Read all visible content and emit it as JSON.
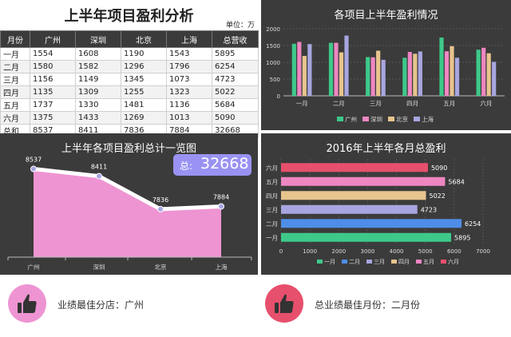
{
  "table_panel": {
    "title": "上半年项目盈利分析",
    "unit": "单位：万",
    "headers": [
      "月份",
      "广州",
      "深圳",
      "北京",
      "上海",
      "总营收"
    ],
    "rows": [
      [
        "一月",
        "1554",
        "1608",
        "1190",
        "1543",
        "5895"
      ],
      [
        "二月",
        "1580",
        "1582",
        "1296",
        "1796",
        "6254"
      ],
      [
        "三月",
        "1156",
        "1149",
        "1345",
        "1073",
        "4723"
      ],
      [
        "四月",
        "1135",
        "1309",
        "1255",
        "1323",
        "5022"
      ],
      [
        "五月",
        "1737",
        "1330",
        "1481",
        "1136",
        "5684"
      ],
      [
        "六月",
        "1375",
        "1433",
        "1269",
        "1013",
        "5090"
      ],
      [
        "总和",
        "8537",
        "8411",
        "7836",
        "7884",
        "32668"
      ]
    ]
  },
  "colors": {
    "广州": "#3ec98a",
    "深圳": "#ee86c2",
    "北京": "#e8c48e",
    "上海": "#a7a6e0",
    "panel_bg": "#3b3b3b",
    "area_fill": "#ee94d2",
    "badge": "#9a92f2"
  },
  "chart_data": [
    {
      "type": "bar",
      "title": "各项目上半年盈利情况",
      "categories": [
        "一月",
        "二月",
        "三月",
        "四月",
        "五月",
        "六月"
      ],
      "series": [
        {
          "name": "广州",
          "values": [
            1554,
            1580,
            1156,
            1135,
            1737,
            1375
          ]
        },
        {
          "name": "深圳",
          "values": [
            1608,
            1582,
            1149,
            1309,
            1330,
            1433
          ]
        },
        {
          "name": "北京",
          "values": [
            1190,
            1296,
            1345,
            1255,
            1481,
            1269
          ]
        },
        {
          "name": "上海",
          "values": [
            1543,
            1796,
            1073,
            1323,
            1136,
            1013
          ]
        }
      ],
      "ylim": [
        0,
        2000
      ],
      "yticks": [
        0,
        500,
        1000,
        1500,
        2000
      ],
      "legend": "bottom",
      "grid": true
    },
    {
      "type": "area",
      "title": "上半年各项目盈利总计一览图",
      "categories": [
        "广州",
        "深圳",
        "北京",
        "上海"
      ],
      "values": [
        8537,
        8411,
        7836,
        7884
      ],
      "total_label": "总:",
      "total_value": "32668"
    },
    {
      "type": "bar",
      "orientation": "horizontal",
      "title": "2016年上半年各月总盈利",
      "categories": [
        "六月",
        "五月",
        "四月",
        "三月",
        "二月",
        "一月"
      ],
      "values": [
        5090,
        5684,
        5022,
        4723,
        6254,
        5895
      ],
      "bar_colors": [
        "#e6506c",
        "#ee86c2",
        "#e8c48e",
        "#a7a6e0",
        "#4f8ee8",
        "#3ec98a"
      ],
      "xlim": [
        0,
        7000
      ],
      "xticks": [
        0,
        1000,
        2000,
        3000,
        4000,
        5000,
        6000,
        7000
      ],
      "legend": [
        "一月",
        "二月",
        "三月",
        "四月",
        "五月",
        "六月"
      ],
      "legend_colors": [
        "#3ec98a",
        "#4f8ee8",
        "#a7a6e0",
        "#e8c48e",
        "#ee86c2",
        "#e6506c"
      ],
      "legend_position": "bottom"
    }
  ],
  "footer": {
    "best_branch": "业绩最佳分店：广州",
    "best_month": "总业绩最佳月份：二月份",
    "icon": "thumbs-up-icon",
    "circle_left_color": "#ee94d2",
    "circle_right_color": "#e6506c"
  }
}
